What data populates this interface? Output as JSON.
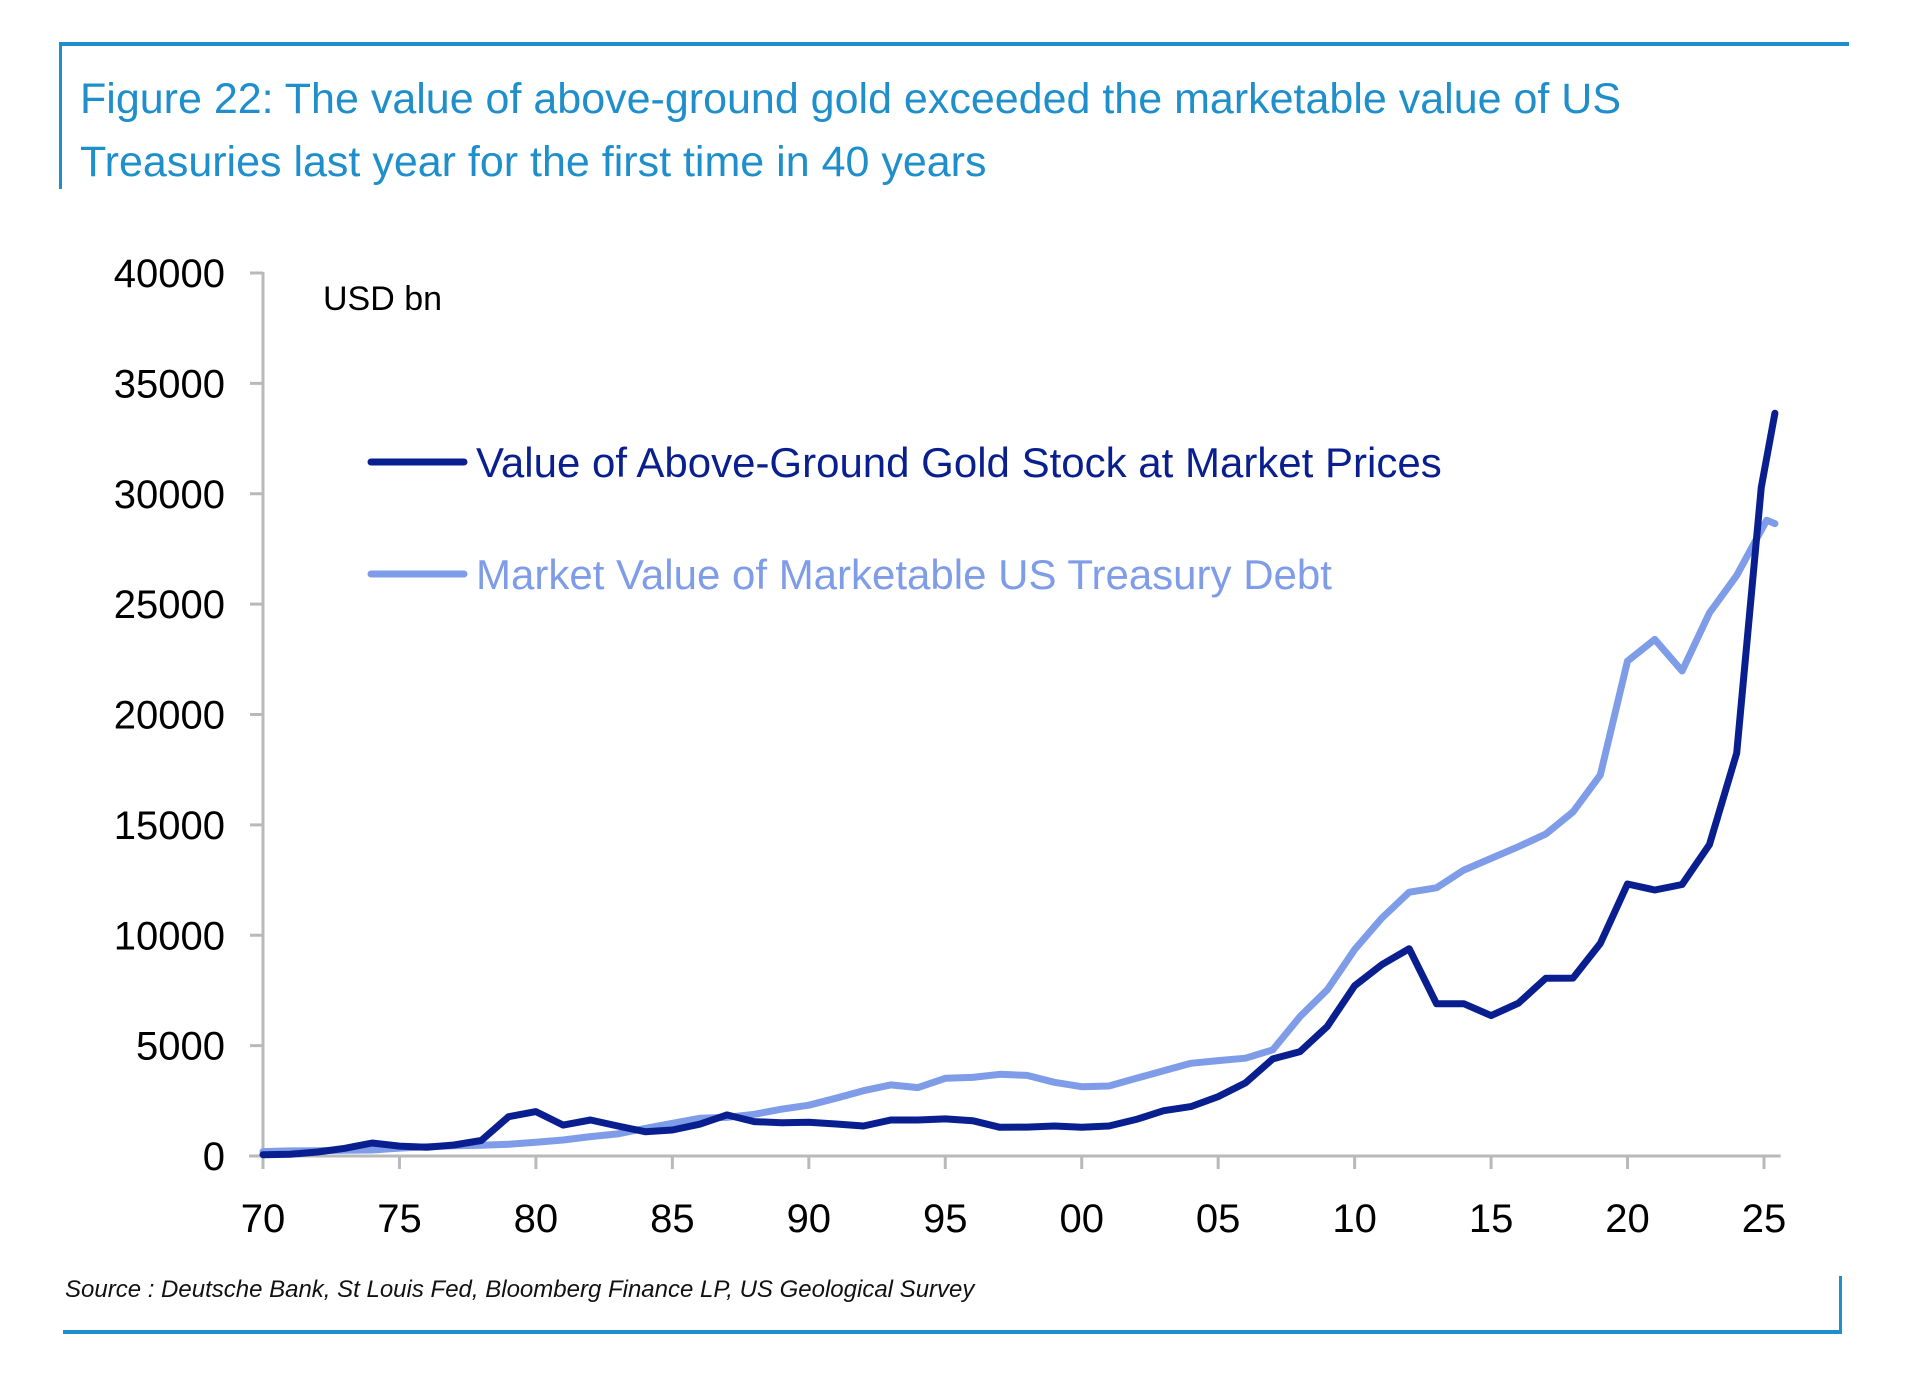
{
  "figure": {
    "title": "Figure 22: The value of above-ground gold exceeded the marketable value of US Treasuries last year for the first time in 40 years",
    "title_line1": "Figure 22: The value of above-ground gold exceeded the marketable value of US",
    "title_line2": "Treasuries last year for the first time in 40 years",
    "source": "Source : Deutsche Bank, St Louis Fed, Bloomberg Finance LP, US Geological Survey",
    "accent_color": "#1f8fcc"
  },
  "chart_data": {
    "type": "line",
    "title": "Figure 22: The value of above-ground gold exceeded the marketable value of US Treasuries last year for the first time in 40 years",
    "xlabel": "",
    "ylabel": "USD bn",
    "unit_label": "USD bn",
    "xlim": [
      1970,
      2025.5
    ],
    "ylim": [
      0,
      40000
    ],
    "grid": false,
    "legend_position": "top-left",
    "x_ticks": [
      1970,
      1975,
      1980,
      1985,
      1990,
      1995,
      2000,
      2005,
      2010,
      2015,
      2020,
      2025
    ],
    "x_tick_labels": [
      "70",
      "75",
      "80",
      "85",
      "90",
      "95",
      "00",
      "05",
      "10",
      "15",
      "20",
      "25"
    ],
    "y_ticks": [
      0,
      5000,
      10000,
      15000,
      20000,
      25000,
      30000,
      35000,
      40000
    ],
    "y_tick_labels": [
      "0",
      "5000",
      "10000",
      "15000",
      "20000",
      "25000",
      "30000",
      "35000",
      "40000"
    ],
    "series": [
      {
        "name": "Value of Above-Ground Gold Stock at Market Prices",
        "color": "#0a1f8f",
        "x": [
          1970,
          1971,
          1972,
          1973,
          1974,
          1975,
          1976,
          1977,
          1978,
          1979,
          1980,
          1981,
          1982,
          1983,
          1984,
          1985,
          1986,
          1987,
          1988,
          1989,
          1990,
          1991,
          1992,
          1993,
          1994,
          1995,
          1996,
          1997,
          1998,
          1999,
          2000,
          2001,
          2002,
          2003,
          2004,
          2005,
          2006,
          2007,
          2008,
          2009,
          2010,
          2011,
          2012,
          2013,
          2014,
          2015,
          2016,
          2017,
          2018,
          2019,
          2020,
          2021,
          2022,
          2023,
          2024,
          2024.9,
          2025.4
        ],
        "values": [
          60,
          80,
          180,
          350,
          590,
          450,
          400,
          500,
          700,
          1780,
          2010,
          1400,
          1630,
          1360,
          1100,
          1180,
          1440,
          1860,
          1560,
          1510,
          1530,
          1450,
          1360,
          1630,
          1630,
          1680,
          1600,
          1300,
          1310,
          1360,
          1300,
          1360,
          1660,
          2050,
          2240,
          2690,
          3310,
          4400,
          4730,
          5870,
          7710,
          8670,
          9390,
          6900,
          6900,
          6360,
          6920,
          8050,
          8060,
          9630,
          12320,
          12050,
          12300,
          14100,
          18250,
          30300,
          33650
        ]
      },
      {
        "name": "Market Value of Marketable US Treasury Debt",
        "color": "#7f9ce8",
        "x": [
          1970,
          1971,
          1972,
          1973,
          1974,
          1975,
          1976,
          1977,
          1978,
          1979,
          1980,
          1981,
          1982,
          1983,
          1984,
          1985,
          1986,
          1987,
          1988,
          1989,
          1990,
          1991,
          1992,
          1993,
          1994,
          1995,
          1996,
          1997,
          1998,
          1999,
          2000,
          2001,
          2002,
          2003,
          2004,
          2005,
          2006,
          2007,
          2008,
          2009,
          2010,
          2011,
          2012,
          2013,
          2014,
          2015,
          2016,
          2017,
          2018,
          2019,
          2020,
          2021,
          2022,
          2023,
          2024,
          2025.1,
          2025.4
        ],
        "values": [
          200,
          230,
          240,
          260,
          270,
          360,
          420,
          460,
          490,
          530,
          620,
          725,
          880,
          1000,
          1250,
          1480,
          1710,
          1750,
          1890,
          2120,
          2300,
          2620,
          2960,
          3220,
          3100,
          3520,
          3560,
          3700,
          3650,
          3340,
          3140,
          3170,
          3520,
          3860,
          4200,
          4320,
          4430,
          4810,
          6320,
          7530,
          9350,
          10780,
          11950,
          12150,
          12950,
          13480,
          14010,
          14580,
          15590,
          17260,
          22420,
          23400,
          21970,
          24600,
          26300,
          28800,
          28650
        ]
      }
    ]
  }
}
